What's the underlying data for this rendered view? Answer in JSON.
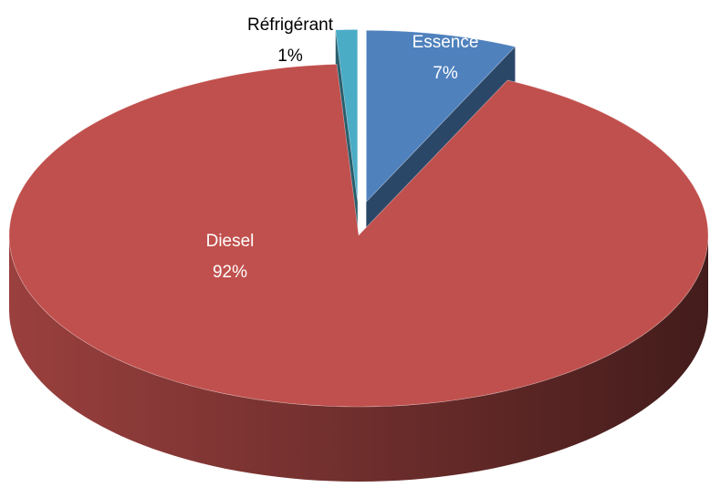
{
  "chart_data": {
    "type": "pie",
    "categories": [
      "Essence",
      "Diesel",
      "Réfrigérant"
    ],
    "values": [
      7,
      92,
      1
    ],
    "value_labels": [
      "7%",
      "92%",
      "1%"
    ],
    "colors": [
      "#4f81bd",
      "#c0504d",
      "#4bacc6"
    ],
    "exploded": [
      true,
      false,
      true
    ]
  }
}
